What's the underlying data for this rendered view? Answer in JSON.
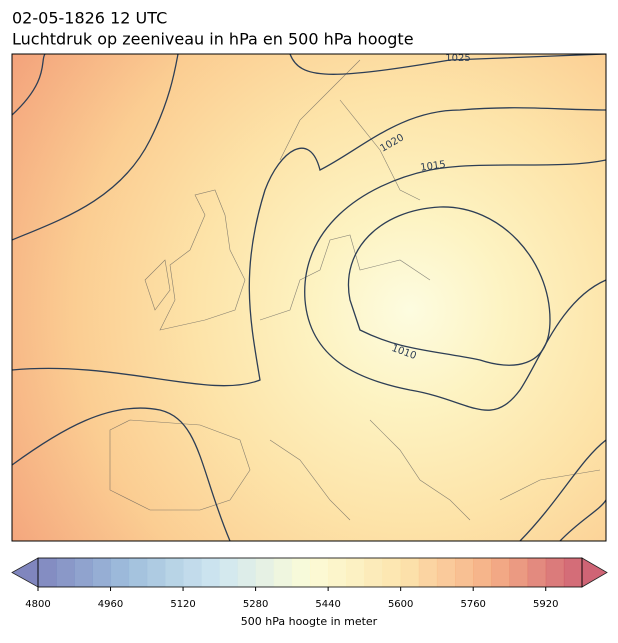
{
  "header": {
    "timestamp": "02-05-1826 12 UTC",
    "title": "Luchtdruk op zeeniveau in hPa en 500 hPa hoogte"
  },
  "map": {
    "contour_labels": [
      "1025",
      "1020",
      "1015",
      "1010"
    ]
  },
  "colorbar": {
    "label": "500 hPa hoogte in meter",
    "lim": [
      4800,
      6000
    ],
    "ticks": [
      4800,
      4960,
      5120,
      5280,
      5440,
      5600,
      5760,
      5920
    ],
    "colormap": [
      "#6a72b3",
      "#8fb4d6",
      "#c8e3ee",
      "#fbfbd0",
      "#fde0a0",
      "#f4a272",
      "#c74a5e"
    ]
  }
}
